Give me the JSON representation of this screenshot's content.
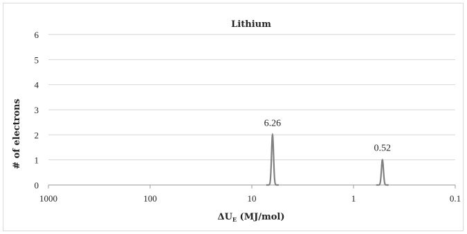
{
  "chart_data": {
    "type": "line",
    "title": "Lithium",
    "xlabel": {
      "prefix": "ΔU",
      "subscript": "E",
      "suffix": " (MJ/mol)"
    },
    "ylabel": "# of electrons",
    "x_scale": "log",
    "x_reversed": true,
    "xlim": [
      0.1,
      1000
    ],
    "ylim": [
      0,
      6
    ],
    "x_ticks": [
      "1000",
      "100",
      "10",
      "1",
      "0.1"
    ],
    "y_ticks": [
      "0",
      "1",
      "2",
      "3",
      "4",
      "5",
      "6"
    ],
    "grid": "horizontal",
    "series": [
      {
        "color": "#808080",
        "peaks": [
          {
            "x": 6.26,
            "y": 2,
            "label": "6.26"
          },
          {
            "x": 0.52,
            "y": 1,
            "label": "0.52"
          }
        ]
      }
    ]
  }
}
